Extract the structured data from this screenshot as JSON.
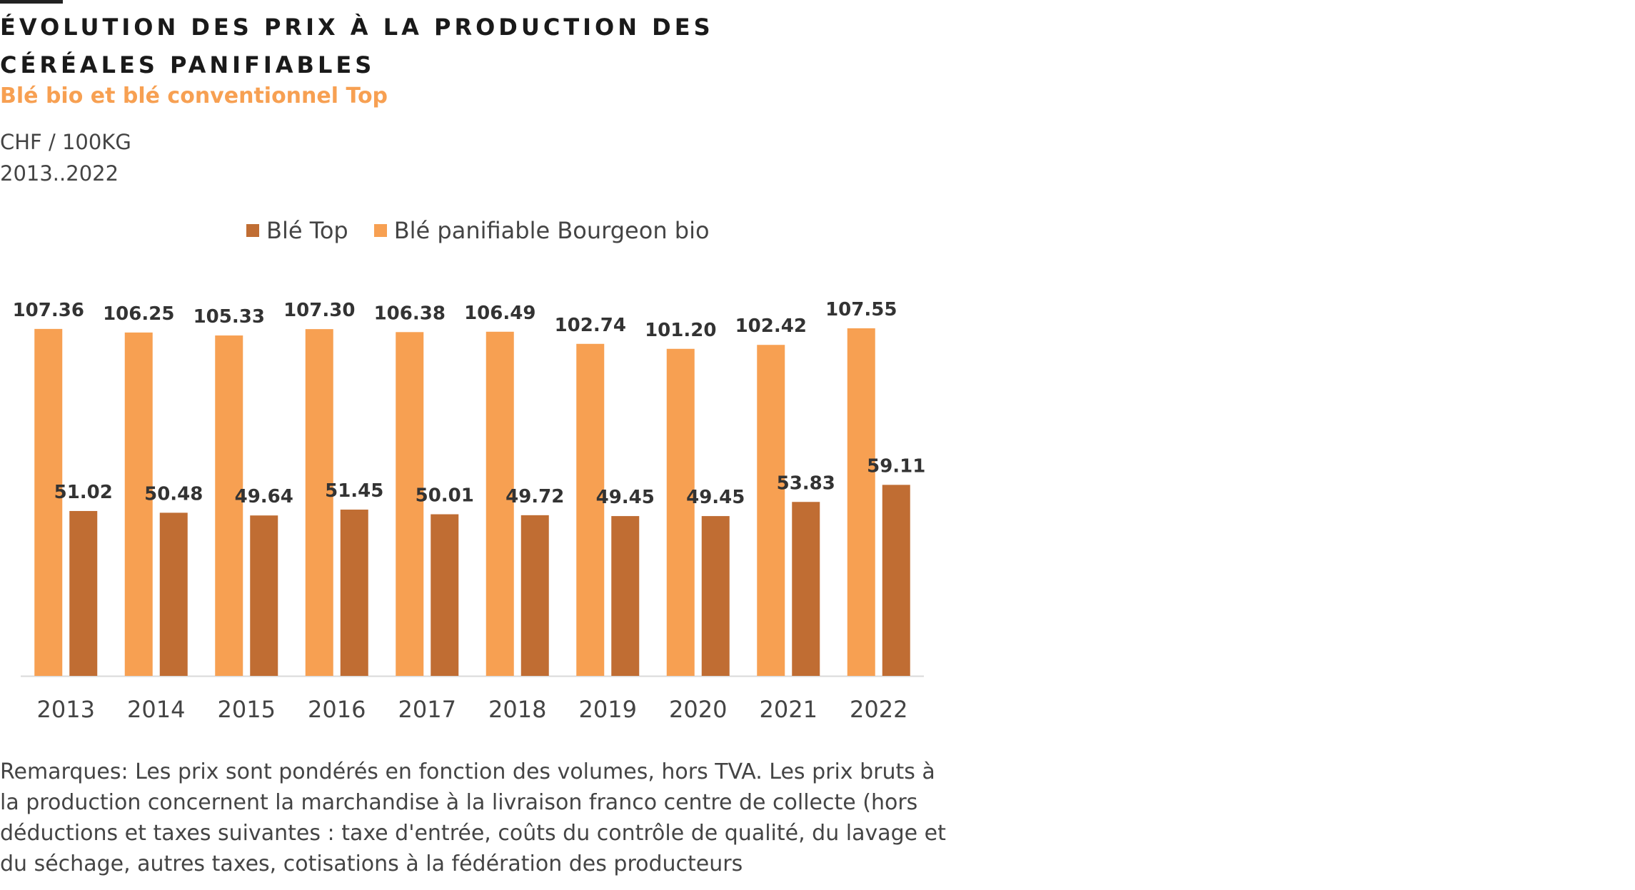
{
  "chart_data": {
    "type": "bar",
    "title": "Évolution des prix à la production des céréales panifiables",
    "subtitle": "Blé bio et blé conventionnel Top",
    "unit": "CHF / 100KG",
    "period": "2013..2022",
    "categories": [
      "2013",
      "2014",
      "2015",
      "2016",
      "2017",
      "2018",
      "2019",
      "2020",
      "2021",
      "2022"
    ],
    "series": [
      {
        "name": "Blé panifiable Bourgeon bio",
        "color": "#f7a052",
        "values": [
          107.36,
          106.25,
          105.33,
          107.3,
          106.38,
          106.49,
          102.74,
          101.2,
          102.42,
          107.55
        ],
        "labels": [
          "107.36",
          "106.25",
          "105.33",
          "107.30",
          "106.38",
          "106.49",
          "102.74",
          "101.20",
          "102.42",
          "107.55"
        ]
      },
      {
        "name": "Blé Top",
        "color": "#c06d33",
        "values": [
          51.02,
          50.48,
          49.64,
          51.45,
          50.01,
          49.72,
          49.45,
          49.45,
          53.83,
          59.11
        ],
        "labels": [
          "51.02",
          "50.48",
          "49.64",
          "51.45",
          "50.01",
          "49.72",
          "49.45",
          "49.45",
          "53.83",
          "59.11"
        ]
      }
    ],
    "legend_order": [
      1,
      0
    ],
    "legend_position": "top",
    "ylim": [
      0,
      107.55
    ],
    "grid": false,
    "axis_color": "#d9d9d9"
  },
  "note": "Remarques: Les prix sont pondérés en fonction des volumes, hors TVA. Les prix bruts à la production concernent la marchandise à la livraison franco centre de collecte (hors déductions et taxes suivantes : taxe d'entrée, coûts du contrôle de qualité, du lavage et du séchage, autres taxes, cotisations à la fédération des producteurs"
}
